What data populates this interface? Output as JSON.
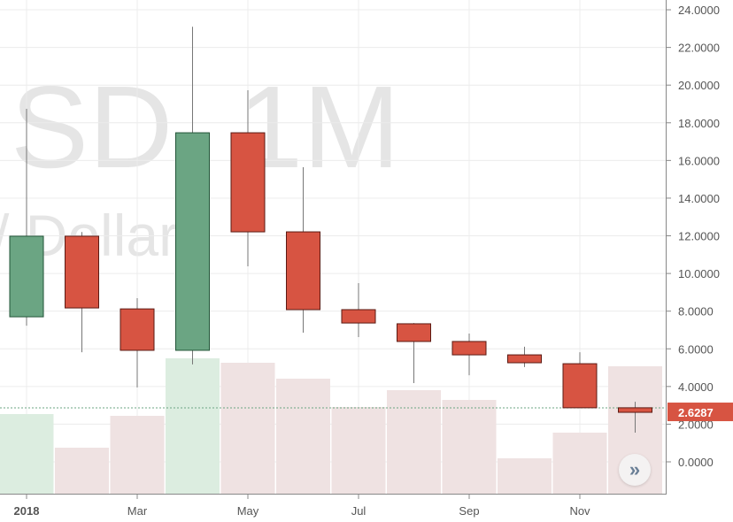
{
  "watermark": {
    "line1": "SD, 1M",
    "line2": "/ Dollar"
  },
  "chart_data": {
    "type": "candlestick",
    "categories": [
      "2018-01",
      "2018-02",
      "2018-03",
      "2018-04",
      "2018-05",
      "2018-06",
      "2018-07",
      "2018-08",
      "2018-09",
      "2018-10",
      "2018-11",
      "2018-12"
    ],
    "open": [
      7.7,
      11.98,
      8.12,
      5.92,
      17.47,
      12.21,
      8.08,
      7.33,
      6.39,
      5.68,
      5.21,
      2.87
    ],
    "high": [
      18.74,
      12.2,
      8.69,
      23.1,
      19.73,
      15.64,
      9.49,
      7.37,
      6.81,
      6.11,
      5.82,
      3.19
    ],
    "low": [
      7.23,
      5.82,
      3.95,
      5.17,
      10.38,
      6.86,
      6.62,
      4.18,
      4.6,
      5.03,
      2.87,
      1.55
    ],
    "close": [
      11.98,
      8.17,
      5.92,
      17.47,
      12.21,
      8.08,
      7.37,
      6.39,
      5.68,
      5.26,
      2.87,
      2.6287
    ],
    "volume_relative": [
      90,
      52,
      88,
      153,
      148,
      130,
      98,
      117,
      106,
      40,
      69,
      144
    ],
    "x_tick_labels": [
      "2018",
      "Mar",
      "May",
      "Jul",
      "Sep",
      "Nov"
    ],
    "x_tick_months": [
      0,
      2,
      4,
      6,
      8,
      10
    ],
    "y_ticks": [
      0,
      2,
      4,
      6,
      8,
      10,
      12,
      14,
      16,
      18,
      20,
      22,
      24
    ],
    "y_tick_labels": [
      "0.0000",
      "2.0000",
      "4.0000",
      "6.0000",
      "8.0000",
      "10.0000",
      "12.0000",
      "14.0000",
      "16.0000",
      "18.0000",
      "20.0000",
      "22.0000",
      "24.0000"
    ],
    "ylim": [
      -1.7,
      24.5
    ],
    "grid": true,
    "last_price": 2.6287,
    "last_price_label": "2.6287",
    "colors": {
      "up": "#6ba583",
      "down": "#d75442",
      "up_border": "#225437",
      "down_border": "#5b1a13",
      "vol_up": "#dcede0",
      "vol_down": "#efe2e2",
      "price_label": "#d75442"
    }
  },
  "controls": {
    "scroll_to_latest_icon": "double-chevron-right-icon",
    "scroll_glyph": "»"
  }
}
